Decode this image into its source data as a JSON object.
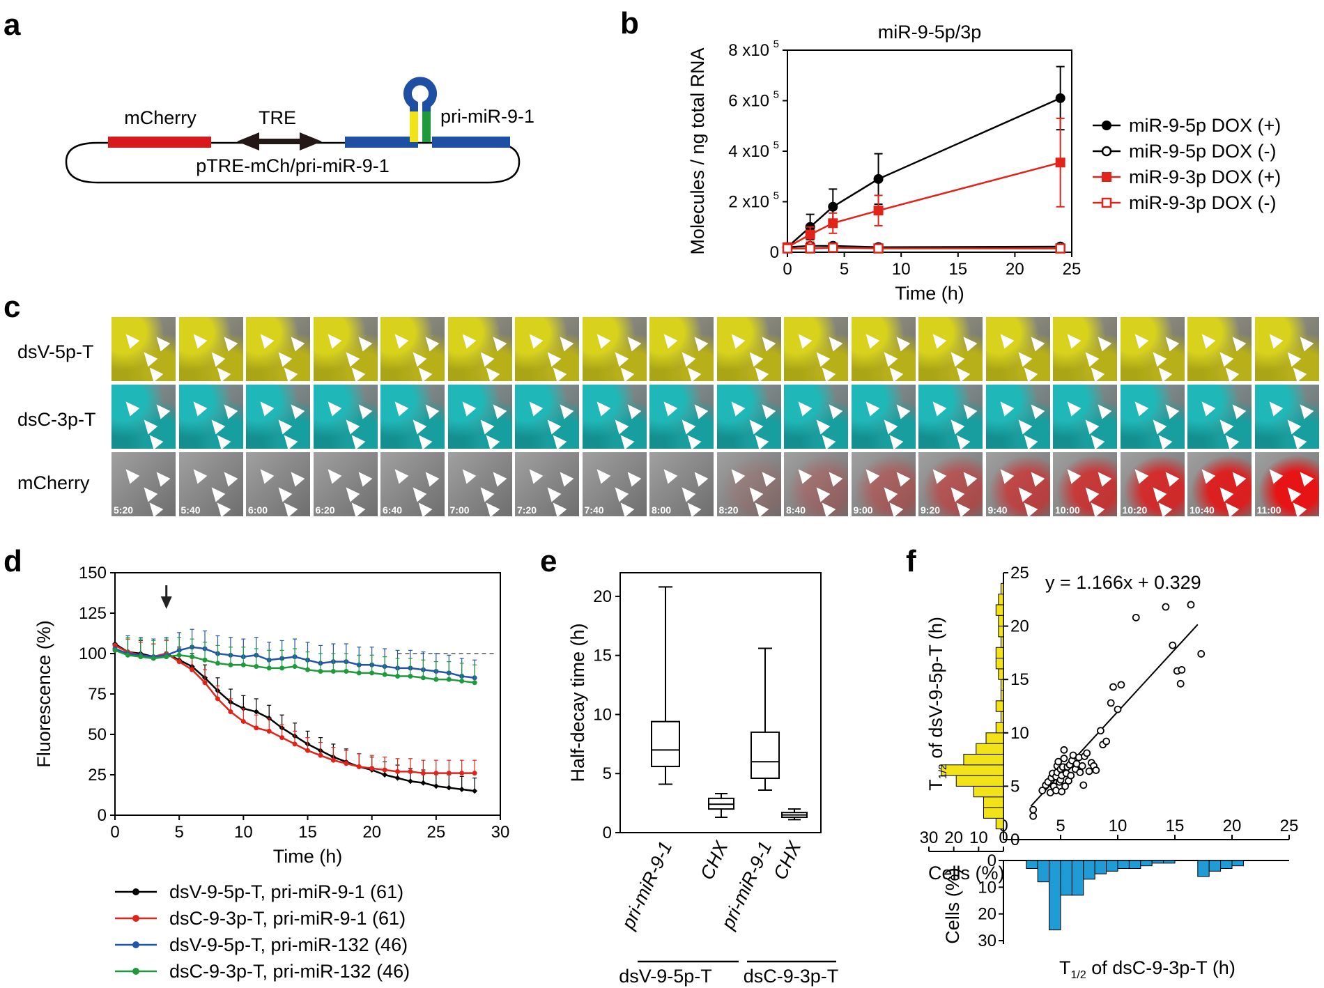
{
  "panels": {
    "a": {
      "label": "a",
      "mcherry": "mCherry",
      "tre": "TRE",
      "pri": "pri-miR-9-1",
      "plasmid": "pTRE-mCh/pri-miR-9-1"
    },
    "b": {
      "label": "b",
      "chart_data": {
        "type": "line",
        "title": "miR-9-5p/3p",
        "xlabel": "Time (h)",
        "ylabel": "Molecules / ng total RNA",
        "xlim": [
          0,
          25
        ],
        "ylim": [
          0,
          800000
        ],
        "x": [
          0,
          2,
          4,
          8,
          24
        ],
        "series": [
          {
            "name": "miR-9-5p DOX (+)",
            "values": [
              20000,
              100000,
              180000,
              290000,
              610000
            ],
            "err": [
              0,
              50000,
              70000,
              100000,
              125000
            ],
            "color": "#000000",
            "marker": "filled-circle"
          },
          {
            "name": "miR-9-5p DOX (-)",
            "values": [
              20000,
              25000,
              25000,
              20000,
              22000
            ],
            "err": [
              0,
              0,
              0,
              0,
              0
            ],
            "color": "#000000",
            "marker": "open-circle"
          },
          {
            "name": "miR-9-3p DOX (+)",
            "values": [
              20000,
              70000,
              115000,
              165000,
              355000
            ],
            "err": [
              0,
              30000,
              40000,
              60000,
              175000
            ],
            "color": "#e2231a",
            "marker": "filled-square"
          },
          {
            "name": "miR-9-3p DOX (-)",
            "values": [
              15000,
              15000,
              18000,
              15000,
              15000
            ],
            "err": [
              0,
              0,
              0,
              0,
              0
            ],
            "color": "#e2231a",
            "marker": "open-square"
          }
        ],
        "xticks": [
          "0",
          "5",
          "10",
          "15",
          "20",
          "25"
        ],
        "yticks": [
          "0",
          "2 x10",
          "4 x10",
          "6 x10",
          "8 x10"
        ],
        "yexp": "5"
      }
    },
    "c": {
      "label": "c",
      "rows": [
        "dsV-5p-T",
        "dsC-3p-T",
        "mCherry"
      ],
      "times": [
        "5:20",
        "5:40",
        "6:00",
        "6:20",
        "6:40",
        "7:00",
        "7:20",
        "7:40",
        "8:00",
        "8:20",
        "8:40",
        "9:00",
        "9:20",
        "9:40",
        "10:00",
        "10:20",
        "10:40",
        "11:00"
      ],
      "colors": {
        "yellow": "#c8c21a",
        "cyan": "#1aa8a8",
        "red": "#e01818",
        "gray": "#7a7a7a"
      }
    },
    "d": {
      "label": "d",
      "chart_data": {
        "type": "line",
        "xlabel": "Time (h)",
        "ylabel": "Fluorescence (%)",
        "xlim": [
          0,
          30
        ],
        "ylim": [
          0,
          150
        ],
        "xticks": [
          "0",
          "5",
          "10",
          "15",
          "20",
          "25",
          "30"
        ],
        "yticks": [
          "0",
          "25",
          "50",
          "75",
          "100",
          "125",
          "150"
        ],
        "annotation": "arrow at t=4 h",
        "x": [
          0,
          1,
          2,
          3,
          4,
          5,
          6,
          7,
          8,
          9,
          10,
          11,
          12,
          13,
          14,
          15,
          16,
          17,
          18,
          19,
          20,
          21,
          22,
          23,
          24,
          25,
          26,
          27,
          28
        ],
        "series": [
          {
            "name": "dsV-9-5p-T, pri-miR-9-1 (61)",
            "color": "#000000",
            "values": [
              106,
              101,
              100,
              98,
              100,
              96,
              92,
              85,
              77,
              70,
              66,
              64,
              60,
              54,
              49,
              44,
              40,
              36,
              33,
              30,
              28,
              25,
              23,
              21,
              20,
              18,
              17,
              16,
              15
            ]
          },
          {
            "name": "dsC-9-3p-T, pri-miR-9-1 (61)",
            "color": "#e2231a",
            "values": [
              105,
              101,
              99,
              98,
              100,
              95,
              90,
              82,
              72,
              64,
              58,
              54,
              52,
              48,
              44,
              40,
              37,
              34,
              32,
              30,
              29,
              28,
              27,
              27,
              26,
              26,
              26,
              26,
              26
            ]
          },
          {
            "name": "dsV-9-5p-T, pri-miR-132 (46)",
            "color": "#2255aa",
            "values": [
              103,
              100,
              99,
              98,
              99,
              102,
              104,
              103,
              100,
              99,
              98,
              99,
              96,
              97,
              98,
              96,
              94,
              95,
              95,
              93,
              93,
              92,
              91,
              91,
              90,
              89,
              88,
              86,
              85
            ]
          },
          {
            "name": "dsC-9-3p-T, pri-miR-132 (46)",
            "color": "#1e9a3c",
            "values": [
              102,
              99,
              98,
              97,
              98,
              99,
              98,
              96,
              94,
              93,
              93,
              92,
              91,
              91,
              92,
              90,
              89,
              89,
              89,
              88,
              88,
              87,
              86,
              86,
              85,
              84,
              84,
              83,
              82
            ]
          }
        ]
      }
    },
    "e": {
      "label": "e",
      "chart_data": {
        "type": "box",
        "ylabel": "Half-decay time (h)",
        "ylim": [
          0,
          22
        ],
        "yticks": [
          "0",
          "5",
          "10",
          "15",
          "20"
        ],
        "categories": [
          "pri-miR-9-1",
          "CHX",
          "pri-miR-9-1",
          "CHX"
        ],
        "groups": [
          "dsV-9-5p-T",
          "dsC-9-3p-T"
        ],
        "boxes": [
          {
            "min": 4.1,
            "q1": 5.6,
            "median": 7.0,
            "q3": 9.4,
            "max": 20.8
          },
          {
            "min": 1.3,
            "q1": 2.0,
            "median": 2.4,
            "q3": 2.9,
            "max": 3.3
          },
          {
            "min": 3.6,
            "q1": 4.6,
            "median": 6.0,
            "q3": 8.5,
            "max": 15.6
          },
          {
            "min": 1.1,
            "q1": 1.3,
            "median": 1.5,
            "q3": 1.7,
            "max": 2.0
          }
        ]
      }
    },
    "f": {
      "label": "f",
      "chart_data": {
        "type": "scatter",
        "equation": "y = 1.166x + 0.329",
        "xlabel_main": "T",
        "xlabel_sub": "1/2",
        "xlabel_rest": " of dsC-9-3p-T (h)",
        "ylabel_main": "T",
        "ylabel_sub": "1/2",
        "ylabel_rest": " of dsV-9-5p-T (h)",
        "hist_label": "Cells (%)",
        "xlim": [
          0,
          25
        ],
        "ylim": [
          0,
          25
        ],
        "xticks": [
          "0",
          "5",
          "10",
          "15",
          "20",
          "25"
        ],
        "yticks": [
          "0",
          "5",
          "10",
          "15",
          "20",
          "25"
        ],
        "hist_x_ticks": [
          "30",
          "20",
          "10",
          "0"
        ],
        "hist_y_ticks": [
          "0",
          "10",
          "20",
          "30"
        ],
        "slope": 1.166,
        "intercept": 0.329,
        "points": [
          [
            2.6,
            2.2
          ],
          [
            2.6,
            2.8
          ],
          [
            3.4,
            4.6
          ],
          [
            3.7,
            5.1
          ],
          [
            3.9,
            5.4
          ],
          [
            4.1,
            4.4
          ],
          [
            4.2,
            5.8
          ],
          [
            4.3,
            6.2
          ],
          [
            4.4,
            5.0
          ],
          [
            4.6,
            4.6
          ],
          [
            4.6,
            5.9
          ],
          [
            4.7,
            6.3
          ],
          [
            4.7,
            6.9
          ],
          [
            4.8,
            7.3
          ],
          [
            4.9,
            5.4
          ],
          [
            5.0,
            5.6
          ],
          [
            5.0,
            6.6
          ],
          [
            5.1,
            4.5
          ],
          [
            5.1,
            6.0
          ],
          [
            5.2,
            6.8
          ],
          [
            5.3,
            7.6
          ],
          [
            5.3,
            8.4
          ],
          [
            5.4,
            5.0
          ],
          [
            5.5,
            6.2
          ],
          [
            5.6,
            6.8
          ],
          [
            5.7,
            5.5
          ],
          [
            5.8,
            7.0
          ],
          [
            5.9,
            6.0
          ],
          [
            6.0,
            7.4
          ],
          [
            6.1,
            7.9
          ],
          [
            6.3,
            6.6
          ],
          [
            6.4,
            7.1
          ],
          [
            6.6,
            7.7
          ],
          [
            6.7,
            6.3
          ],
          [
            6.9,
            6.9
          ],
          [
            7.0,
            5.1
          ],
          [
            7.1,
            7.8
          ],
          [
            7.3,
            8.1
          ],
          [
            7.5,
            6.4
          ],
          [
            7.7,
            7.2
          ],
          [
            7.9,
            6.9
          ],
          [
            8.1,
            6.5
          ],
          [
            8.5,
            10.2
          ],
          [
            8.7,
            8.9
          ],
          [
            9.0,
            9.2
          ],
          [
            9.4,
            12.8
          ],
          [
            9.6,
            14.3
          ],
          [
            10.0,
            12.2
          ],
          [
            10.3,
            14.5
          ],
          [
            11.6,
            20.8
          ],
          [
            14.2,
            21.8
          ],
          [
            14.8,
            18.2
          ],
          [
            15.2,
            15.8
          ],
          [
            15.5,
            14.6
          ],
          [
            15.6,
            15.9
          ],
          [
            16.4,
            22.0
          ],
          [
            17.3,
            17.4
          ]
        ],
        "hist_y_values": [
          0,
          3,
          8,
          8,
          12,
          19,
          25,
          16,
          11,
          7,
          3,
          1,
          3,
          1,
          1,
          2,
          3,
          3,
          1,
          2,
          2,
          3,
          2,
          1
        ],
        "hist_x_values": [
          3,
          8,
          26,
          13,
          13,
          7,
          5,
          4,
          3,
          3,
          2,
          1,
          1,
          0,
          0,
          6,
          4,
          3,
          2,
          0,
          0,
          0,
          0,
          0
        ]
      }
    }
  }
}
